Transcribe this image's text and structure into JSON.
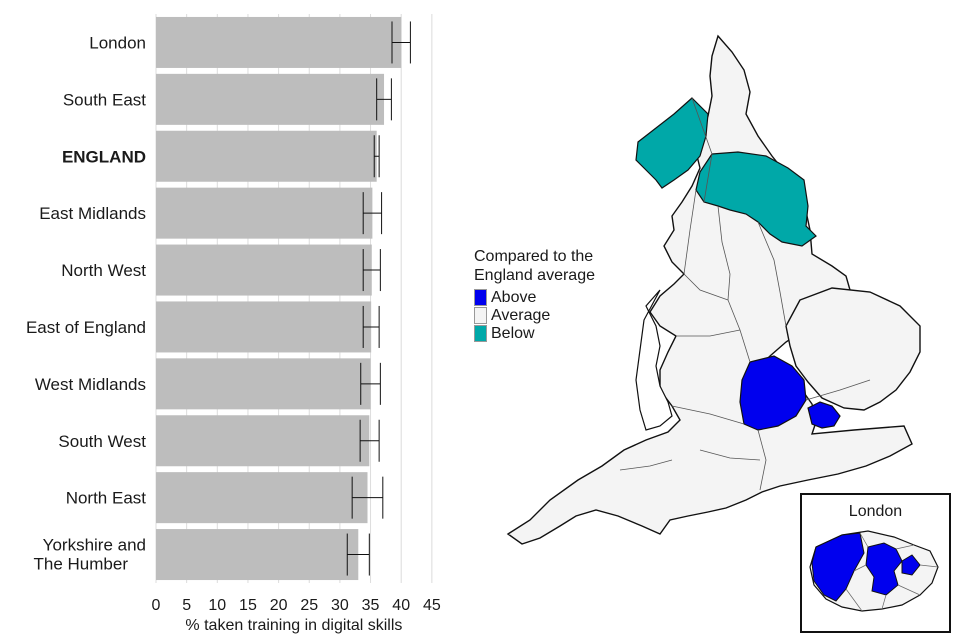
{
  "chart_data": {
    "type": "bar",
    "orientation": "horizontal",
    "categories": [
      "London",
      "South East",
      "ENGLAND",
      "East Midlands",
      "North West",
      "East of England",
      "West Midlands",
      "South West",
      "North East",
      "Yorkshire and The Humber"
    ],
    "values": [
      40.0,
      37.2,
      36.0,
      35.3,
      35.2,
      35.1,
      35.0,
      34.8,
      34.5,
      33.0
    ],
    "error_low": [
      38.5,
      36.0,
      35.6,
      33.8,
      33.8,
      33.8,
      33.4,
      33.3,
      32.0,
      31.2
    ],
    "error_high": [
      41.5,
      38.4,
      36.4,
      36.8,
      36.6,
      36.4,
      36.6,
      36.4,
      37.0,
      34.8
    ],
    "highlight": "ENGLAND",
    "xlabel": "% taken training in digital skills",
    "xlim": [
      0,
      45
    ],
    "xticks": [
      0,
      5,
      10,
      15,
      20,
      25,
      30,
      35,
      40,
      45
    ],
    "grid": "vertical",
    "bar_color": "#bdbdbd"
  },
  "legend": {
    "title_line1": "Compared to the",
    "title_line2": "England average",
    "items": [
      {
        "label": "Above",
        "color": "#0000ee"
      },
      {
        "label": "Average",
        "color": "#f4f4f4"
      },
      {
        "label": "Below",
        "color": "#00a8a8"
      }
    ]
  },
  "inset": {
    "title": "London"
  }
}
